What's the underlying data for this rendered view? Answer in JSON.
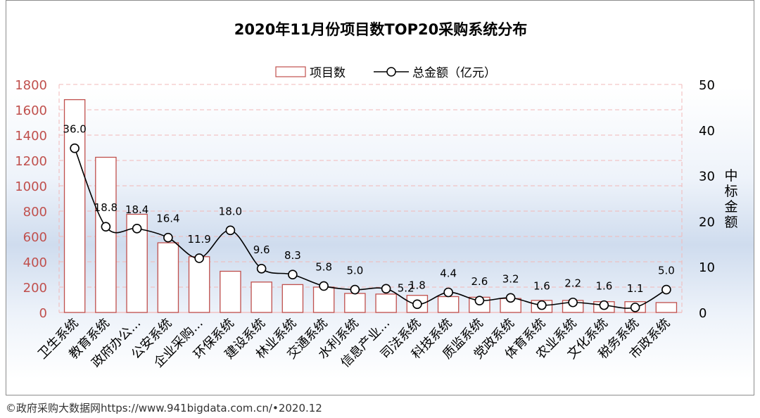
{
  "chart_data": {
    "type": "bar+line",
    "title": "2020年11月份项目数TOP20采购系统分布",
    "categories": [
      "卫生系统",
      "教育系统",
      "政府办公...",
      "公安系统",
      "企业采购...",
      "环保系统",
      "建设系统",
      "林业系统",
      "交通系统",
      "水利系统",
      "信息产业...",
      "司法系统",
      "科技系统",
      "质监系统",
      "党政系统",
      "体育系统",
      "农业系统",
      "文化系统",
      "税务系统",
      "市政系统"
    ],
    "series": [
      {
        "name": "项目数",
        "type": "bar",
        "axis": "left",
        "values": [
          1680,
          1225,
          775,
          550,
          440,
          325,
          240,
          220,
          200,
          150,
          145,
          135,
          125,
          120,
          110,
          95,
          95,
          85,
          85,
          78
        ]
      },
      {
        "name": "总金额（亿元）",
        "type": "line",
        "axis": "right",
        "values": [
          36.0,
          18.8,
          18.4,
          16.4,
          11.9,
          18.0,
          9.6,
          8.3,
          5.8,
          5.0,
          5.2,
          1.8,
          4.4,
          2.6,
          3.2,
          1.6,
          2.2,
          1.6,
          1.1,
          5.0
        ],
        "labels": [
          "36.0",
          "18.8",
          "18.4",
          "16.4",
          "11.9",
          "18.0",
          "9.6",
          "8.3",
          "5.8",
          "5.0",
          "5.2",
          "1.8",
          "4.4",
          "2.6",
          "3.2",
          "1.6",
          "2.2",
          "1.6",
          "1.1",
          "5.0"
        ]
      }
    ],
    "y_left": {
      "min": 0,
      "max": 1800,
      "ticks": [
        "0",
        "200",
        "400",
        "600",
        "800",
        "1000",
        "1200",
        "1400",
        "1600",
        "1800"
      ],
      "color": "#c0504d"
    },
    "y_right": {
      "min": 0,
      "max": 50,
      "ticks": [
        "0",
        "10",
        "20",
        "30",
        "40",
        "50"
      ],
      "label": "中标金额"
    },
    "legend_position": "top-center",
    "grid": true,
    "colors": {
      "bar_stroke": "#c0504d",
      "bar_fill": "#ffffff",
      "line": "#000000",
      "grid": "#f2b8b8",
      "left_axis_text": "#c0504d",
      "right_axis_text": "#000000"
    }
  },
  "footer": "©政府采购大数据网https://www.941bigdata.com.cn/•2020.12"
}
